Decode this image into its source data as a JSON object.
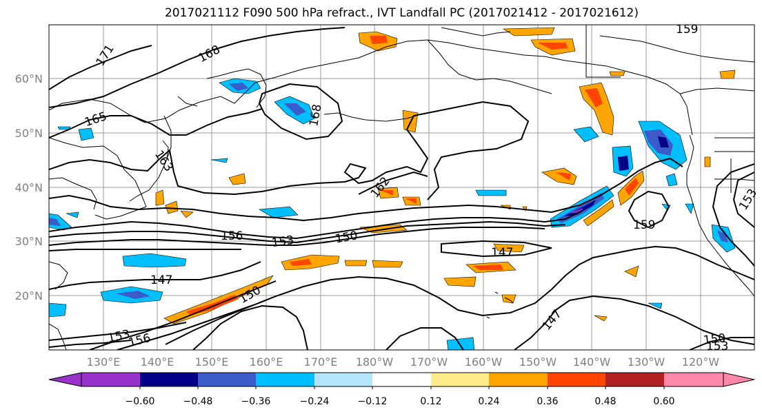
{
  "title": "2017021112 F090 500 hPa refract., IVT Landfall PC (2017021412 - 2017021612)",
  "lat_labels": [
    "60°N",
    "50°N",
    "40°N",
    "30°N",
    "20°N"
  ],
  "lon_labels": [
    "130°E",
    "140°E",
    "150°E",
    "160°E",
    "170°E",
    "180°W",
    "170°W",
    "160°W",
    "150°W",
    "140°W",
    "130°W",
    "120°W"
  ],
  "colorbar": {
    "ticks": [
      "−0.60",
      "−0.48",
      "−0.36",
      "−0.24",
      "−0.12",
      "0.12",
      "0.24",
      "0.36",
      "0.48",
      "0.60"
    ],
    "under_color": "#9932cc",
    "over_color": "#ff88aa",
    "colors": [
      "#000088",
      "#3a5bc8",
      "#00bfff",
      "#b3e5fc",
      "#ffffff",
      "#ffea88",
      "#ffa500",
      "#ff4500",
      "#b22222"
    ]
  },
  "contour_labels": [
    "171",
    "168",
    "165",
    "168",
    "163",
    "162",
    "159",
    "159",
    "156",
    "153",
    "150",
    "147",
    "147",
    "150",
    "147",
    "153",
    "156",
    "153",
    "150",
    "153"
  ]
}
